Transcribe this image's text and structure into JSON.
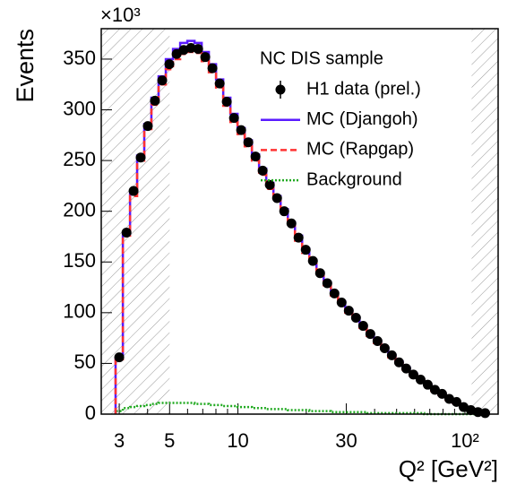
{
  "chart_data": {
    "type": "step",
    "y_multiplier": "×10³",
    "xlabel": "Q² [GeV²]",
    "ylabel": "Events",
    "legend_title": "NC DIS sample",
    "legend": "upper right",
    "log_x": true,
    "xlim": [
      2.5,
      140
    ],
    "ylim": [
      0,
      380
    ],
    "xticks": [
      3,
      5,
      10,
      30,
      {
        "value": 100,
        "label": "10²"
      }
    ],
    "xminorticks": [
      4,
      6,
      7,
      8,
      9,
      20,
      40,
      50,
      60,
      70,
      80,
      90
    ],
    "yticks": [
      0,
      50,
      100,
      150,
      200,
      250,
      300,
      350
    ],
    "excluded_below": 5,
    "excluded_above": 107,
    "x": [
      3.0,
      3.23,
      3.47,
      3.73,
      4.01,
      4.31,
      4.64,
      4.99,
      5.37,
      5.77,
      6.21,
      6.68,
      7.18,
      7.72,
      8.31,
      8.93,
      9.61,
      10.33,
      11.11,
      11.95,
      12.85,
      13.82,
      14.87,
      15.99,
      17.2,
      18.49,
      19.89,
      21.39,
      23.01,
      24.75,
      26.61,
      28.62,
      30.78,
      33.11,
      35.61,
      38.3,
      41.19,
      44.3,
      47.64,
      51.24,
      55.11,
      59.27,
      63.74,
      68.55,
      73.73,
      79.3,
      85.28,
      91.72,
      98.65,
      106.1,
      114.1,
      122.7
    ],
    "series": [
      {
        "name": "H1 data (prel.)",
        "style": "points",
        "color": "#000000",
        "values": [
          56,
          179,
          220,
          253,
          284,
          309,
          329,
          345,
          355,
          359,
          361,
          360,
          352,
          341,
          326,
          308,
          292,
          280,
          268,
          254,
          240,
          226,
          213,
          200,
          188,
          174,
          162,
          151,
          139,
          129,
          119,
          110,
          102,
          95,
          87,
          79,
          72,
          65,
          58,
          51,
          45,
          39,
          34,
          29,
          24,
          20,
          15,
          12,
          7,
          4,
          2,
          1
        ]
      },
      {
        "name": "MC (Djangoh)",
        "style": "solid",
        "color": "#5a1bff",
        "values": [
          55,
          178,
          218,
          255,
          286,
          312,
          333,
          350,
          360,
          366,
          368,
          366,
          357,
          345,
          330,
          312,
          296,
          282,
          270,
          256,
          242,
          228,
          215,
          202,
          189,
          176,
          163,
          152,
          140,
          130,
          120,
          111,
          103,
          95,
          87,
          79,
          72,
          65,
          58,
          52,
          46,
          40,
          34,
          29,
          24,
          19,
          15,
          11,
          7,
          4,
          2,
          1
        ]
      },
      {
        "name": "MC (Rapgap)",
        "style": "dashed",
        "color": "#ff3333",
        "values": [
          54,
          176,
          215,
          250,
          281,
          305,
          325,
          340,
          350,
          355,
          357,
          356,
          348,
          337,
          322,
          304,
          288,
          276,
          264,
          250,
          236,
          222,
          210,
          197,
          185,
          171,
          159,
          149,
          137,
          127,
          117,
          108,
          100,
          93,
          85,
          77,
          70,
          63,
          56,
          50,
          44,
          38,
          33,
          28,
          23,
          19,
          14,
          11,
          6,
          3,
          2,
          1
        ]
      },
      {
        "name": "Background",
        "style": "dotted",
        "color": "#22aa22",
        "values": [
          3,
          6,
          7,
          8,
          9,
          10,
          11,
          11,
          11,
          11,
          11,
          10,
          10,
          9,
          9,
          8,
          8,
          7,
          7,
          6,
          6,
          5,
          5,
          5,
          4,
          4,
          4,
          3,
          3,
          3,
          2,
          2,
          2,
          2,
          2,
          1,
          1,
          1,
          1,
          1,
          1,
          1,
          1,
          0,
          0,
          0,
          0,
          0,
          0,
          0,
          0,
          0
        ]
      }
    ]
  }
}
